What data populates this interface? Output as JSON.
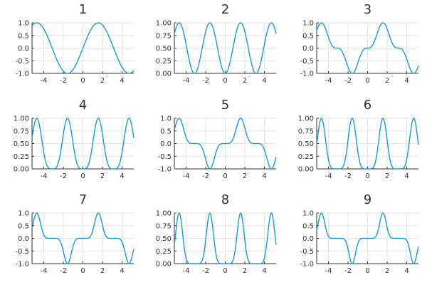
{
  "accent_color": "#1b9bd1",
  "chart_data": [
    {
      "type": "line",
      "title": "1",
      "power": 1,
      "xlim": [
        -5.2,
        5.2
      ],
      "ylim": [
        -1.0,
        1.0
      ],
      "xticks": [
        -4,
        -2,
        0,
        2,
        4
      ],
      "xtick_labels": [
        "-4",
        "-2",
        "0",
        "2",
        "4"
      ],
      "yticks": [
        -1.0,
        -0.5,
        0.0,
        0.5,
        1.0
      ],
      "ytick_labels": [
        "-1.0",
        "-0.5",
        "0.0",
        "0.5",
        "1.0"
      ],
      "x": [
        -5,
        -4.5,
        -4,
        -3.5,
        -3,
        -2.5,
        -2,
        -1.5,
        -1,
        -0.5,
        0,
        0.5,
        1,
        1.5,
        2,
        2.5,
        3,
        3.5,
        4,
        4.5,
        5
      ],
      "y": [
        0.959,
        0.978,
        0.757,
        0.351,
        -0.141,
        -0.598,
        -0.909,
        -0.997,
        -0.841,
        -0.479,
        0.0,
        0.479,
        0.841,
        0.997,
        0.909,
        0.598,
        0.141,
        -0.351,
        -0.757,
        -0.978,
        -0.959
      ],
      "grid": true,
      "legend": "none"
    },
    {
      "type": "line",
      "title": "2",
      "power": 2,
      "xlim": [
        -5.2,
        5.2
      ],
      "ylim": [
        0.0,
        1.0
      ],
      "xticks": [
        -4,
        -2,
        0,
        2,
        4
      ],
      "xtick_labels": [
        "-4",
        "-2",
        "0",
        "2",
        "4"
      ],
      "yticks": [
        0.0,
        0.25,
        0.5,
        0.75,
        1.0
      ],
      "ytick_labels": [
        "0.00",
        "0.25",
        "0.50",
        "0.75",
        "1.00"
      ],
      "x": [
        -5,
        -4.5,
        -4,
        -3.5,
        -3,
        -2.5,
        -2,
        -1.5,
        -1,
        -0.5,
        0,
        0.5,
        1,
        1.5,
        2,
        2.5,
        3,
        3.5,
        4,
        4.5,
        5
      ],
      "y": [
        0.919,
        0.956,
        0.573,
        0.123,
        0.02,
        0.358,
        0.827,
        0.995,
        0.708,
        0.23,
        0.0,
        0.23,
        0.708,
        0.995,
        0.827,
        0.358,
        0.02,
        0.123,
        0.573,
        0.956,
        0.919
      ],
      "grid": true,
      "legend": "none"
    },
    {
      "type": "line",
      "title": "3",
      "power": 3,
      "xlim": [
        -5.2,
        5.2
      ],
      "ylim": [
        -1.0,
        1.0
      ],
      "xticks": [
        -4,
        -2,
        0,
        2,
        4
      ],
      "xtick_labels": [
        "-4",
        "-2",
        "0",
        "2",
        "4"
      ],
      "yticks": [
        -1.0,
        -0.5,
        0.0,
        0.5,
        1.0
      ],
      "ytick_labels": [
        "-1.0",
        "-0.5",
        "0.0",
        "0.5",
        "1.0"
      ],
      "x": [
        -5,
        -4.5,
        -4,
        -3.5,
        -3,
        -2.5,
        -2,
        -1.5,
        -1,
        -0.5,
        0,
        0.5,
        1,
        1.5,
        2,
        2.5,
        3,
        3.5,
        4,
        4.5,
        5
      ],
      "y": [
        0.882,
        0.935,
        0.434,
        0.043,
        -0.003,
        -0.214,
        -0.751,
        -0.992,
        -0.596,
        -0.11,
        0.0,
        0.11,
        0.596,
        0.992,
        0.751,
        0.214,
        0.003,
        -0.043,
        -0.434,
        -0.935,
        -0.882
      ],
      "grid": true,
      "legend": "none"
    },
    {
      "type": "line",
      "title": "4",
      "power": 4,
      "xlim": [
        -5.2,
        5.2
      ],
      "ylim": [
        0.0,
        1.0
      ],
      "xticks": [
        -4,
        -2,
        0,
        2,
        4
      ],
      "xtick_labels": [
        "-4",
        "-2",
        "0",
        "2",
        "4"
      ],
      "yticks": [
        0.0,
        0.25,
        0.5,
        0.75,
        1.0
      ],
      "ytick_labels": [
        "0.00",
        "0.25",
        "0.50",
        "0.75",
        "1.00"
      ],
      "x": [
        -5,
        -4.5,
        -4,
        -3.5,
        -3,
        -2.5,
        -2,
        -1.5,
        -1,
        -0.5,
        0,
        0.5,
        1,
        1.5,
        2,
        2.5,
        3,
        3.5,
        4,
        4.5,
        5
      ],
      "y": [
        0.845,
        0.914,
        0.328,
        0.015,
        0.0,
        0.128,
        0.683,
        0.99,
        0.501,
        0.053,
        0.0,
        0.053,
        0.501,
        0.99,
        0.683,
        0.128,
        0.0,
        0.015,
        0.328,
        0.914,
        0.845
      ],
      "grid": true,
      "legend": "none"
    },
    {
      "type": "line",
      "title": "5",
      "power": 5,
      "xlim": [
        -5.2,
        5.2
      ],
      "ylim": [
        -1.0,
        1.0
      ],
      "xticks": [
        -4,
        -2,
        0,
        2,
        4
      ],
      "xtick_labels": [
        "-4",
        "-2",
        "0",
        "2",
        "4"
      ],
      "yticks": [
        -1.0,
        -0.5,
        0.0,
        0.5,
        1.0
      ],
      "ytick_labels": [
        "-1.0",
        "-0.5",
        "0.0",
        "0.5",
        "1.0"
      ],
      "x": [
        -5,
        -4.5,
        -4,
        -3.5,
        -3,
        -2.5,
        -2,
        -1.5,
        -1,
        -0.5,
        0,
        0.5,
        1,
        1.5,
        2,
        2.5,
        3,
        3.5,
        4,
        4.5,
        5
      ],
      "y": [
        0.81,
        0.894,
        0.248,
        0.005,
        0.0,
        -0.077,
        -0.621,
        -0.987,
        -0.421,
        -0.025,
        0.0,
        0.025,
        0.421,
        0.987,
        0.621,
        0.077,
        0.0,
        -0.005,
        -0.248,
        -0.894,
        -0.81
      ],
      "grid": true,
      "legend": "none"
    },
    {
      "type": "line",
      "title": "6",
      "power": 6,
      "xlim": [
        -5.2,
        5.2
      ],
      "ylim": [
        0.0,
        1.0
      ],
      "xticks": [
        -4,
        -2,
        0,
        2,
        4
      ],
      "xtick_labels": [
        "-4",
        "-2",
        "0",
        "2",
        "4"
      ],
      "yticks": [
        0.0,
        0.25,
        0.5,
        0.75,
        1.0
      ],
      "ytick_labels": [
        "0.00",
        "0.25",
        "0.50",
        "0.75",
        "1.00"
      ],
      "x": [
        -5,
        -4.5,
        -4,
        -3.5,
        -3,
        -2.5,
        -2,
        -1.5,
        -1,
        -0.5,
        0,
        0.5,
        1,
        1.5,
        2,
        2.5,
        3,
        3.5,
        4,
        4.5,
        5
      ],
      "y": [
        0.777,
        0.874,
        0.188,
        0.002,
        0.0,
        0.046,
        0.565,
        0.985,
        0.355,
        0.012,
        0.0,
        0.012,
        0.355,
        0.985,
        0.565,
        0.046,
        0.0,
        0.002,
        0.188,
        0.874,
        0.777
      ],
      "grid": true,
      "legend": "none"
    },
    {
      "type": "line",
      "title": "7",
      "power": 7,
      "xlim": [
        -5.2,
        5.2
      ],
      "ylim": [
        -1.0,
        1.0
      ],
      "xticks": [
        -4,
        -2,
        0,
        2,
        4
      ],
      "xtick_labels": [
        "-4",
        "-2",
        "0",
        "2",
        "4"
      ],
      "yticks": [
        -1.0,
        -0.5,
        0.0,
        0.5,
        1.0
      ],
      "ytick_labels": [
        "-1.0",
        "-0.5",
        "0.0",
        "0.5",
        "1.0"
      ],
      "x": [
        -5,
        -4.5,
        -4,
        -3.5,
        -3,
        -2.5,
        -2,
        -1.5,
        -1,
        -0.5,
        0,
        0.5,
        1,
        1.5,
        2,
        2.5,
        3,
        3.5,
        4,
        4.5,
        5
      ],
      "y": [
        0.745,
        0.855,
        0.142,
        0.001,
        0.0,
        -0.027,
        -0.514,
        -0.982,
        -0.298,
        -0.006,
        0.0,
        0.006,
        0.298,
        0.982,
        0.514,
        0.027,
        0.0,
        -0.001,
        -0.142,
        -0.855,
        -0.745
      ],
      "grid": true,
      "legend": "none"
    },
    {
      "type": "line",
      "title": "8",
      "power": 8,
      "xlim": [
        -5.2,
        5.2
      ],
      "ylim": [
        0.0,
        1.0
      ],
      "xticks": [
        -4,
        -2,
        0,
        2,
        4
      ],
      "xtick_labels": [
        "-4",
        "-2",
        "0",
        "2",
        "4"
      ],
      "yticks": [
        0.0,
        0.25,
        0.5,
        0.75,
        1.0
      ],
      "ytick_labels": [
        "0.00",
        "0.25",
        "0.50",
        "0.75",
        "1.00"
      ],
      "x": [
        -5,
        -4.5,
        -4,
        -3.5,
        -3,
        -2.5,
        -2,
        -1.5,
        -1,
        -0.5,
        0,
        0.5,
        1,
        1.5,
        2,
        2.5,
        3,
        3.5,
        4,
        4.5,
        5
      ],
      "y": [
        0.714,
        0.836,
        0.108,
        0.0,
        0.0,
        0.016,
        0.468,
        0.98,
        0.251,
        0.003,
        0.0,
        0.003,
        0.251,
        0.98,
        0.468,
        0.016,
        0.0,
        0.0,
        0.108,
        0.836,
        0.714
      ],
      "grid": true,
      "legend": "none"
    },
    {
      "type": "line",
      "title": "9",
      "power": 9,
      "xlim": [
        -5.2,
        5.2
      ],
      "ylim": [
        -1.0,
        1.0
      ],
      "xticks": [
        -4,
        -2,
        0,
        2,
        4
      ],
      "xtick_labels": [
        "-4",
        "-2",
        "0",
        "2",
        "4"
      ],
      "yticks": [
        -1.0,
        -0.5,
        0.0,
        0.5,
        1.0
      ],
      "ytick_labels": [
        "-1.0",
        "-0.5",
        "0.0",
        "0.5",
        "1.0"
      ],
      "x": [
        -5,
        -4.5,
        -4,
        -3.5,
        -3,
        -2.5,
        -2,
        -1.5,
        -1,
        -0.5,
        0,
        0.5,
        1,
        1.5,
        2,
        2.5,
        3,
        3.5,
        4,
        4.5,
        5
      ],
      "y": [
        0.685,
        0.817,
        0.082,
        0.0,
        0.0,
        -0.01,
        -0.425,
        -0.977,
        -0.211,
        -0.001,
        0.0,
        0.001,
        0.211,
        0.977,
        0.425,
        0.01,
        0.0,
        0.0,
        -0.082,
        -0.817,
        -0.685
      ],
      "grid": true,
      "legend": "none"
    }
  ]
}
